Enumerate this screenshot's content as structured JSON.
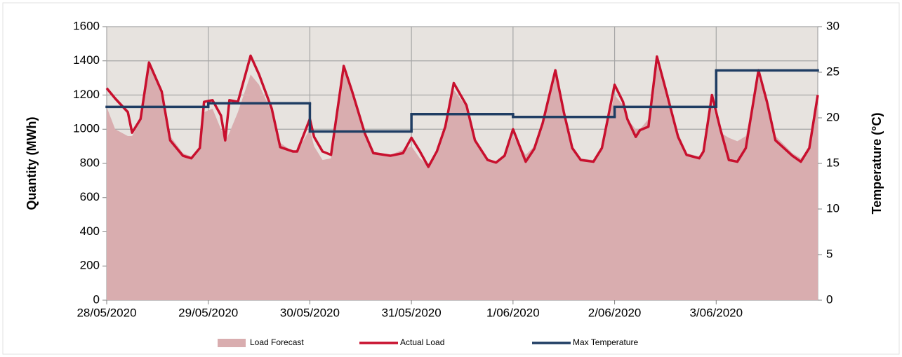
{
  "chart_data": {
    "type": "line",
    "y_label": "Quantity (MWh)",
    "y2_label": "Temperature (°C)",
    "xlim": [
      0,
      168
    ],
    "xticks": [
      {
        "value": 0,
        "label": "28/05/2020"
      },
      {
        "value": 24,
        "label": "29/05/2020"
      },
      {
        "value": 48,
        "label": "30/05/2020"
      },
      {
        "value": 72,
        "label": "31/05/2020"
      },
      {
        "value": 96,
        "label": "1/06/2020"
      },
      {
        "value": 120,
        "label": "2/06/2020"
      },
      {
        "value": 144,
        "label": "3/06/2020"
      }
    ],
    "ylim": [
      0,
      1600
    ],
    "yticks": [
      0,
      200,
      400,
      600,
      800,
      1000,
      1200,
      1400,
      1600
    ],
    "y2lim": [
      0,
      30
    ],
    "y2ticks": [
      0,
      5,
      10,
      15,
      20,
      25,
      30
    ],
    "grid": true,
    "legend": "bottom",
    "x": [
      0,
      2,
      5,
      6,
      8,
      10,
      13,
      15,
      18,
      20,
      22,
      23,
      25,
      27,
      28,
      29,
      31,
      34,
      36,
      39,
      41,
      44,
      45,
      48,
      49,
      51,
      53,
      56,
      58,
      61,
      63,
      67,
      70,
      72,
      74,
      76,
      78,
      80,
      82,
      85,
      87,
      90,
      92,
      94,
      96,
      99,
      101,
      103,
      106,
      108,
      110,
      112,
      115,
      117,
      120,
      122,
      123,
      125,
      126,
      128,
      130,
      132,
      135,
      137,
      140,
      141,
      143,
      145,
      147,
      149,
      151,
      154,
      156,
      158,
      162,
      164,
      166,
      168
    ],
    "series": [
      {
        "name": "Load Forecast",
        "color": "#d9adaf",
        "kind": "area",
        "values": [
          1130,
          1000,
          960,
          960,
          1050,
          1380,
          1200,
          960,
          860,
          840,
          900,
          1100,
          1120,
          1000,
          930,
          980,
          1100,
          1320,
          1260,
          1100,
          920,
          870,
          870,
          1000,
          900,
          820,
          830,
          1340,
          1220,
          990,
          870,
          850,
          880,
          900,
          830,
          790,
          850,
          1000,
          1230,
          1130,
          940,
          830,
          810,
          850,
          960,
          850,
          900,
          1040,
          1320,
          1110,
          900,
          830,
          820,
          900,
          1200,
          1140,
          1060,
          1000,
          1000,
          1060,
          1380,
          1250,
          980,
          860,
          840,
          870,
          1150,
          980,
          950,
          930,
          960,
          1300,
          1170,
          960,
          860,
          830,
          880,
          1150
        ]
      },
      {
        "name": "Actual Load",
        "color": "#c8102e",
        "kind": "line",
        "values": [
          1240,
          1180,
          1100,
          980,
          1060,
          1390,
          1220,
          935,
          845,
          830,
          890,
          1160,
          1170,
          1080,
          935,
          1170,
          1160,
          1430,
          1320,
          1120,
          895,
          870,
          870,
          1060,
          955,
          870,
          850,
          1370,
          1220,
          975,
          860,
          845,
          860,
          950,
          870,
          780,
          870,
          1015,
          1270,
          1140,
          935,
          820,
          805,
          845,
          1000,
          810,
          885,
          1035,
          1345,
          1100,
          890,
          820,
          810,
          890,
          1260,
          1160,
          1060,
          955,
          995,
          1015,
          1425,
          1240,
          955,
          850,
          830,
          870,
          1200,
          1000,
          820,
          810,
          890,
          1345,
          1160,
          935,
          845,
          810,
          890,
          1200
        ]
      },
      {
        "name": "Max Temperature",
        "color": "#1f3d63",
        "kind": "step",
        "axis": "y2",
        "x": [
          0,
          24,
          48,
          72,
          96,
          120,
          144,
          168
        ],
        "values": [
          21.2,
          21.6,
          18.5,
          20.4,
          20.1,
          21.2,
          25.2,
          25.2
        ]
      }
    ]
  }
}
